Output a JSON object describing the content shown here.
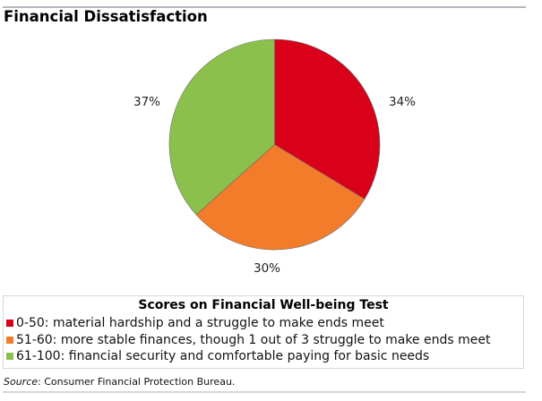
{
  "header": {
    "title": "Financial Dissatisfaction"
  },
  "chart_data": {
    "type": "pie",
    "title": "Financial Dissatisfaction",
    "start_angle_deg": 0,
    "direction": "clockwise",
    "categories": [
      "0-50: material hardship and a struggle to make ends meet",
      "51-60: more stable finances, though 1 out of 3 struggle to make ends meet",
      "61-100: financial security and comfortable paying for basic needs"
    ],
    "values": [
      34,
      30,
      37
    ],
    "labels": [
      "34%",
      "30%",
      "37%"
    ],
    "colors": [
      "#d9001a",
      "#f27c2a",
      "#8cc04c"
    ],
    "legend_title": "Scores on Financial Well-being Test",
    "legend_position": "bottom",
    "source": "Consumer Financial Protection Bureau."
  },
  "pie": {
    "labels": {
      "red": "34%",
      "orange": "30%",
      "green": "37%"
    }
  },
  "legend": {
    "title": "Scores on Financial Well-being Test",
    "items": [
      {
        "label": "0-50: material hardship and a struggle to make ends meet",
        "color": "#d9001a"
      },
      {
        "label": "51-60: more stable finances, though 1 out of 3 struggle to make ends meet",
        "color": "#f27c2a"
      },
      {
        "label": "61-100: financial security and comfortable paying for basic needs",
        "color": "#8cc04c"
      }
    ]
  },
  "footer": {
    "source_prefix": "Source",
    "source_text": ": Consumer Financial Protection Bureau."
  }
}
